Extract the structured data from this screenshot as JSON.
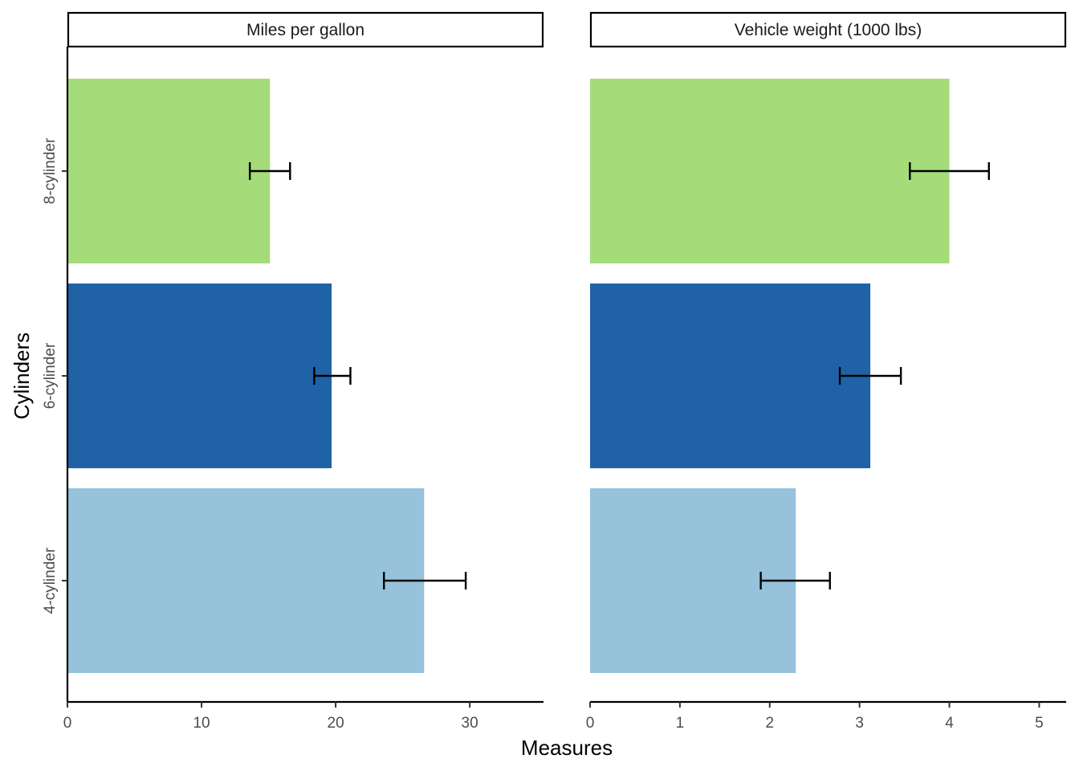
{
  "chart_data": {
    "type": "bar",
    "orientation": "horizontal",
    "xlabel": "Measures",
    "ylabel": "Cylinders",
    "categories": [
      "8-cylinder",
      "6-cylinder",
      "4-cylinder"
    ],
    "colors": {
      "8-cylinder": "#a6db7a",
      "6-cylinder": "#1f63a6",
      "4-cylinder": "#96c2db"
    },
    "legend": "none",
    "grid": false,
    "panels": [
      {
        "title": "Miles per gallon",
        "xlim": [
          0,
          35.5
        ],
        "ticks": [
          0,
          10,
          20,
          30
        ],
        "tick_labels": [
          "0",
          "10",
          "20",
          "30"
        ],
        "values": [
          15.1,
          19.7,
          26.6
        ],
        "error_low": [
          13.6,
          18.4,
          23.6
        ],
        "error_high": [
          16.6,
          21.1,
          29.7
        ]
      },
      {
        "title": "Vehicle weight (1000 lbs)",
        "xlim": [
          0,
          5.3
        ],
        "ticks": [
          0,
          1,
          2,
          3,
          4,
          5
        ],
        "tick_labels": [
          "0",
          "1",
          "2",
          "3",
          "4",
          "5"
        ],
        "values": [
          4.0,
          3.12,
          2.29
        ],
        "error_low": [
          3.56,
          2.78,
          1.9
        ],
        "error_high": [
          4.44,
          3.46,
          2.67
        ]
      }
    ]
  }
}
